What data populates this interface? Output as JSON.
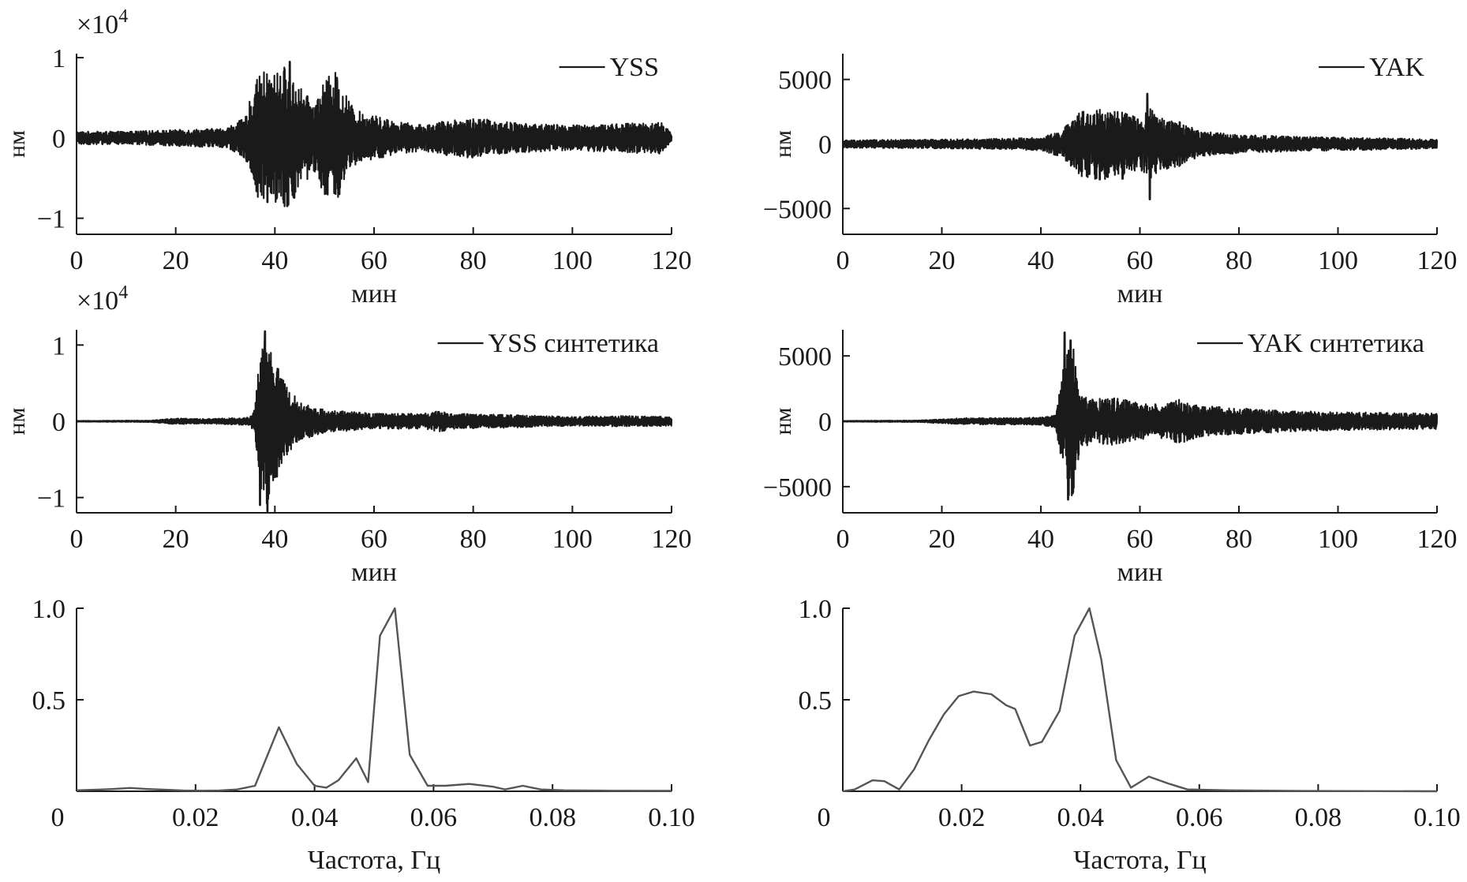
{
  "chart_data": [
    {
      "type": "line",
      "id": "yss",
      "legend": "YSS",
      "xlabel": "мин",
      "ylabel": "нм",
      "multiplier": "×10",
      "multiplier_exp": "4",
      "xlim": [
        0,
        120
      ],
      "ylim": [
        -1.2,
        1.05
      ],
      "xticks": [
        "0",
        "20",
        "40",
        "60",
        "80",
        "100",
        "120"
      ],
      "yticks": [
        {
          "v": 1,
          "t": "1"
        },
        {
          "v": 0,
          "t": "0"
        },
        {
          "v": -1,
          "t": "−1"
        }
      ],
      "envelope": [
        [
          0,
          0.08
        ],
        [
          10,
          0.08
        ],
        [
          20,
          0.1
        ],
        [
          30,
          0.12
        ],
        [
          34,
          0.25
        ],
        [
          36,
          0.7
        ],
        [
          38,
          0.85
        ],
        [
          40,
          0.8
        ],
        [
          42,
          0.9
        ],
        [
          44,
          0.75
        ],
        [
          46,
          0.55
        ],
        [
          48,
          0.45
        ],
        [
          50,
          0.7
        ],
        [
          52,
          0.85
        ],
        [
          54,
          0.6
        ],
        [
          56,
          0.35
        ],
        [
          60,
          0.28
        ],
        [
          65,
          0.2
        ],
        [
          70,
          0.16
        ],
        [
          75,
          0.22
        ],
        [
          80,
          0.25
        ],
        [
          90,
          0.18
        ],
        [
          100,
          0.16
        ],
        [
          110,
          0.18
        ],
        [
          118,
          0.2
        ],
        [
          120,
          0.05
        ]
      ],
      "peaks": [
        [
          43,
          0.95
        ],
        [
          38.5,
          -0.8
        ],
        [
          42.5,
          -0.85
        ],
        [
          52.5,
          0.75
        ],
        [
          53,
          -0.7
        ]
      ]
    },
    {
      "type": "line",
      "id": "yak",
      "legend": "YAK",
      "xlabel": "мин",
      "ylabel": "нм",
      "xlim": [
        0,
        120
      ],
      "ylim": [
        -7000,
        7000
      ],
      "xticks": [
        "0",
        "20",
        "40",
        "60",
        "80",
        "100",
        "120"
      ],
      "yticks": [
        {
          "v": 5000,
          "t": "5000"
        },
        {
          "v": 0,
          "t": "0"
        },
        {
          "v": -5000,
          "t": "−5000"
        }
      ],
      "envelope": [
        [
          0,
          300
        ],
        [
          20,
          350
        ],
        [
          30,
          400
        ],
        [
          40,
          500
        ],
        [
          44,
          1000
        ],
        [
          48,
          2500
        ],
        [
          52,
          2800
        ],
        [
          56,
          2500
        ],
        [
          60,
          2000
        ],
        [
          62,
          2800
        ],
        [
          64,
          2000
        ],
        [
          68,
          1800
        ],
        [
          72,
          1000
        ],
        [
          80,
          700
        ],
        [
          90,
          600
        ],
        [
          100,
          500
        ],
        [
          110,
          450
        ],
        [
          120,
          350
        ]
      ],
      "peaks": [
        [
          61.5,
          3900
        ],
        [
          62,
          -4300
        ],
        [
          56.5,
          -2700
        ]
      ]
    },
    {
      "type": "line",
      "id": "yss-syn",
      "legend": "YSS синтетика",
      "xlabel": "мин",
      "ylabel": "нм",
      "multiplier": "×10",
      "multiplier_exp": "4",
      "xlim": [
        0,
        120
      ],
      "ylim": [
        -1.2,
        1.2
      ],
      "xticks": [
        "0",
        "20",
        "40",
        "60",
        "80",
        "100",
        "120"
      ],
      "yticks": [
        {
          "v": 1,
          "t": "1"
        },
        {
          "v": 0,
          "t": "0"
        },
        {
          "v": -1,
          "t": "−1"
        }
      ],
      "envelope": [
        [
          0,
          0.005
        ],
        [
          15,
          0.01
        ],
        [
          20,
          0.04
        ],
        [
          25,
          0.03
        ],
        [
          30,
          0.04
        ],
        [
          35,
          0.05
        ],
        [
          36,
          0.2
        ],
        [
          37,
          0.9
        ],
        [
          38,
          1.15
        ],
        [
          40,
          0.8
        ],
        [
          42,
          0.5
        ],
        [
          45,
          0.25
        ],
        [
          50,
          0.15
        ],
        [
          60,
          0.1
        ],
        [
          70,
          0.1
        ],
        [
          73,
          0.14
        ],
        [
          76,
          0.1
        ],
        [
          90,
          0.08
        ],
        [
          100,
          0.06
        ],
        [
          110,
          0.07
        ],
        [
          120,
          0.06
        ]
      ],
      "peaks": [
        [
          38,
          1.18
        ],
        [
          38.5,
          -1.18
        ],
        [
          37,
          -1.1
        ]
      ]
    },
    {
      "type": "line",
      "id": "yak-syn",
      "legend": "YAK синтетика",
      "xlabel": "мин",
      "ylabel": "нм",
      "xlim": [
        0,
        120
      ],
      "ylim": [
        -7000,
        7000
      ],
      "xticks": [
        "0",
        "20",
        "40",
        "60",
        "80",
        "100",
        "120"
      ],
      "yticks": [
        {
          "v": 5000,
          "t": "5000"
        },
        {
          "v": 0,
          "t": "0"
        },
        {
          "v": -5000,
          "t": "−5000"
        }
      ],
      "envelope": [
        [
          0,
          30
        ],
        [
          15,
          60
        ],
        [
          20,
          150
        ],
        [
          25,
          250
        ],
        [
          30,
          250
        ],
        [
          35,
          250
        ],
        [
          40,
          300
        ],
        [
          43,
          500
        ],
        [
          44.5,
          4000
        ],
        [
          46,
          6500
        ],
        [
          47,
          5000
        ],
        [
          48,
          2000
        ],
        [
          50,
          1800
        ],
        [
          55,
          1800
        ],
        [
          60,
          1400
        ],
        [
          65,
          1300
        ],
        [
          68,
          1700
        ],
        [
          72,
          1200
        ],
        [
          80,
          1000
        ],
        [
          90,
          800
        ],
        [
          100,
          700
        ],
        [
          110,
          650
        ],
        [
          120,
          600
        ]
      ],
      "peaks": [
        [
          44.8,
          6800
        ],
        [
          46,
          6200
        ],
        [
          45.5,
          -6000
        ]
      ]
    },
    {
      "type": "line",
      "id": "yss-spec",
      "xlabel": "Частота, Гц",
      "xlim": [
        0,
        0.1
      ],
      "ylim": [
        0,
        1.0
      ],
      "xticks": [
        {
          "v": 0,
          "t": "0"
        },
        {
          "v": 0.02,
          "t": "0.02"
        },
        {
          "v": 0.04,
          "t": "0.04"
        },
        {
          "v": 0.06,
          "t": "0.06"
        },
        {
          "v": 0.08,
          "t": "0.08"
        },
        {
          "v": 0.1,
          "t": "0.10"
        }
      ],
      "yticks": [
        {
          "v": 1.0,
          "t": "1.0"
        },
        {
          "v": 0.5,
          "t": "0.5"
        }
      ],
      "x": [
        0,
        0.003,
        0.006,
        0.009,
        0.012,
        0.015,
        0.018,
        0.021,
        0.024,
        0.027,
        0.03,
        0.034,
        0.037,
        0.04,
        0.042,
        0.044,
        0.047,
        0.049,
        0.051,
        0.0535,
        0.056,
        0.059,
        0.062,
        0.066,
        0.07,
        0.072,
        0.075,
        0.078,
        0.082,
        0.09,
        0.1
      ],
      "y": [
        0.005,
        0.008,
        0.012,
        0.018,
        0.012,
        0.008,
        0.004,
        0.003,
        0.004,
        0.01,
        0.03,
        0.35,
        0.15,
        0.03,
        0.02,
        0.06,
        0.18,
        0.05,
        0.85,
        1.0,
        0.2,
        0.03,
        0.03,
        0.04,
        0.025,
        0.01,
        0.03,
        0.01,
        0.005,
        0.003,
        0.002
      ]
    },
    {
      "type": "line",
      "id": "yak-spec",
      "xlabel": "Частота, Гц",
      "xlim": [
        0,
        0.1
      ],
      "ylim": [
        0,
        1.0
      ],
      "xticks": [
        {
          "v": 0,
          "t": "0"
        },
        {
          "v": 0.02,
          "t": "0.02"
        },
        {
          "v": 0.04,
          "t": "0.04"
        },
        {
          "v": 0.06,
          "t": "0.06"
        },
        {
          "v": 0.08,
          "t": "0.08"
        },
        {
          "v": 0.1,
          "t": "0.10"
        }
      ],
      "yticks": [
        {
          "v": 1.0,
          "t": "1.0"
        },
        {
          "v": 0.5,
          "t": "0.5"
        }
      ],
      "x": [
        0,
        0.002,
        0.005,
        0.007,
        0.0095,
        0.012,
        0.0145,
        0.017,
        0.0195,
        0.022,
        0.025,
        0.0275,
        0.029,
        0.0315,
        0.0335,
        0.0365,
        0.039,
        0.0415,
        0.0435,
        0.046,
        0.0485,
        0.0515,
        0.055,
        0.058,
        0.065,
        0.075,
        0.1
      ],
      "y": [
        0,
        0.01,
        0.06,
        0.055,
        0.01,
        0.12,
        0.28,
        0.42,
        0.52,
        0.545,
        0.53,
        0.47,
        0.45,
        0.25,
        0.27,
        0.44,
        0.85,
        1.0,
        0.72,
        0.17,
        0.02,
        0.08,
        0.04,
        0.01,
        0.005,
        0.002,
        0.0
      ]
    }
  ]
}
